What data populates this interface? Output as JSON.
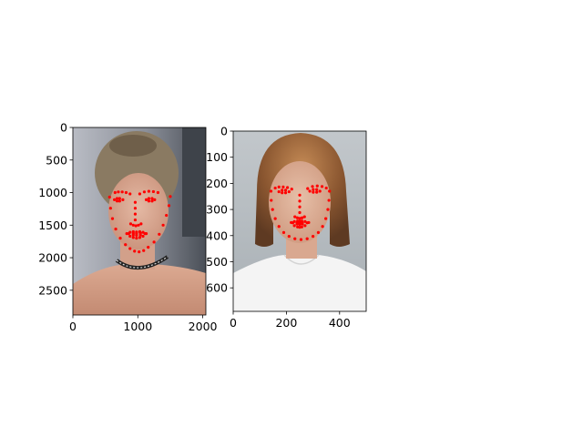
{
  "chart_data": [
    {
      "type": "scatter",
      "title": "",
      "xlabel": "",
      "ylabel": "",
      "xlim": [
        0,
        2048
      ],
      "ylim": [
        2880,
        0
      ],
      "x_ticks": [
        0,
        1000,
        2000
      ],
      "x_tick_labels": [
        "0",
        "1000",
        "2000"
      ],
      "y_ticks": [
        0,
        500,
        1000,
        1500,
        2000,
        2500
      ],
      "y_tick_labels": [
        "0",
        "500",
        "1000",
        "1500",
        "2000",
        "2500"
      ],
      "image": "photo of a woman with hair pulled back and a black choker necklace, face marked with red landmark dots",
      "marker_color": "#ff0000",
      "series": [
        {
          "x": [
            565,
            580,
            610,
            660,
            730,
            810,
            880,
            950,
            1020,
            1090,
            1160,
            1250,
            1330,
            1390,
            1440,
            1480,
            1500,
            650,
            700,
            760,
            820,
            880,
            1030,
            1100,
            1170,
            1240,
            1310,
            960,
            960,
            960,
            960,
            890,
            930,
            970,
            1010,
            1050,
            640,
            680,
            720,
            770,
            720,
            680,
            1130,
            1170,
            1220,
            1260,
            1220,
            1170,
            830,
            880,
            930,
            980,
            1030,
            1080,
            1130,
            1080,
            1030,
            980,
            930,
            880,
            860,
            930,
            980,
            1040,
            1110,
            1040,
            980,
            930
          ],
          "y": [
            1070,
            1240,
            1400,
            1560,
            1700,
            1800,
            1860,
            1900,
            1910,
            1890,
            1840,
            1760,
            1640,
            1500,
            1350,
            1200,
            1060,
            1000,
            990,
            990,
            1000,
            1020,
            1020,
            990,
            980,
            985,
            1000,
            1150,
            1240,
            1330,
            1420,
            1480,
            1500,
            1510,
            1500,
            1480,
            1110,
            1090,
            1090,
            1110,
            1130,
            1130,
            1110,
            1090,
            1090,
            1110,
            1130,
            1130,
            1630,
            1610,
            1600,
            1605,
            1600,
            1610,
            1630,
            1670,
            1690,
            1700,
            1690,
            1670,
            1630,
            1625,
            1625,
            1625,
            1630,
            1650,
            1655,
            1650
          ]
        }
      ]
    },
    {
      "type": "scatter",
      "title": "",
      "xlabel": "",
      "ylabel": "",
      "xlim": [
        0,
        500
      ],
      "ylim": [
        690,
        0
      ],
      "x_ticks": [
        0,
        200,
        400
      ],
      "x_tick_labels": [
        "0",
        "200",
        "400"
      ],
      "y_ticks": [
        0,
        100,
        200,
        300,
        400,
        500,
        600
      ],
      "y_tick_labels": [
        "0",
        "100",
        "200",
        "300",
        "400",
        "500",
        "600"
      ],
      "image": "photo of a woman with shoulder-length auburn hair in a white top, face marked with red landmark dots",
      "marker_color": "#ff0000",
      "series": [
        {
          "x": [
            142,
            143,
            148,
            158,
            172,
            190,
            210,
            232,
            255,
            278,
            300,
            320,
            336,
            348,
            356,
            360,
            362,
            158,
            172,
            188,
            204,
            220,
            280,
            298,
            316,
            334,
            350,
            250,
            250,
            250,
            250,
            232,
            241,
            250,
            259,
            268,
            172,
            184,
            197,
            210,
            197,
            184,
            288,
            301,
            314,
            326,
            314,
            301,
            218,
            230,
            242,
            250,
            258,
            270,
            284,
            270,
            258,
            250,
            242,
            230,
            224,
            240,
            250,
            260,
            278,
            260,
            250,
            240
          ],
          "y": [
            230,
            265,
            300,
            335,
            365,
            388,
            403,
            412,
            415,
            412,
            403,
            388,
            365,
            335,
            300,
            265,
            230,
            218,
            214,
            214,
            216,
            222,
            220,
            212,
            210,
            212,
            218,
            245,
            268,
            290,
            312,
            328,
            332,
            334,
            332,
            328,
            232,
            226,
            226,
            232,
            236,
            236,
            230,
            224,
            224,
            230,
            234,
            234,
            350,
            346,
            344,
            345,
            344,
            346,
            350,
            362,
            367,
            368,
            367,
            362,
            351,
            351,
            352,
            351,
            351,
            356,
            357,
            356
          ]
        }
      ]
    }
  ]
}
